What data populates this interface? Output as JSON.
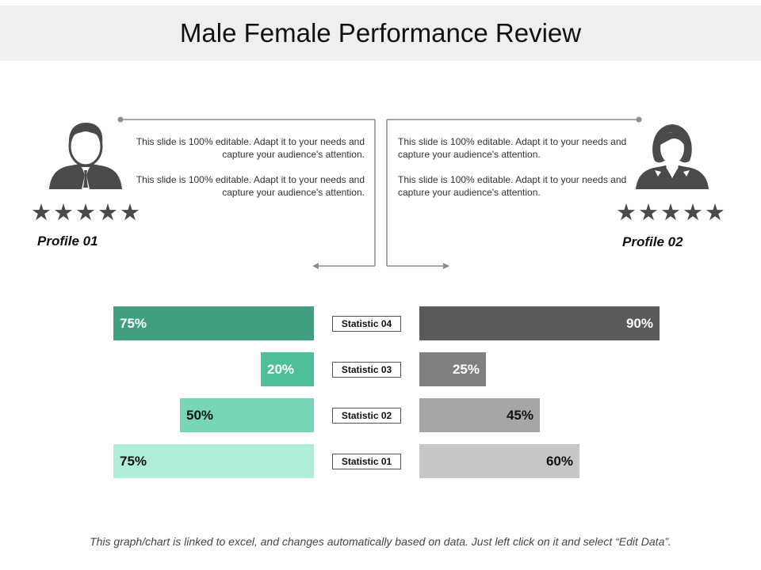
{
  "title": "Male Female Performance Review",
  "profiles": [
    {
      "label": "Profile 01",
      "icon": "male-user-icon",
      "rating": 5,
      "stars": "★★★★★"
    },
    {
      "label": "Profile 02",
      "icon": "female-user-icon",
      "rating": 5,
      "stars": "★★★★★"
    }
  ],
  "descriptions": {
    "left": [
      "This slide is 100% editable. Adapt it to your needs and capture your audience's attention.",
      "This slide is 100% editable. Adapt it to your needs and capture your audience's attention."
    ],
    "right": [
      "This slide is 100% editable. Adapt it to your needs and capture your audience's attention.",
      "This slide is 100% editable. Adapt it to your needs and capture your audience's attention."
    ]
  },
  "chart_data": {
    "type": "bar",
    "orientation": "horizontal-butterfly",
    "unit": "%",
    "xlim": [
      0,
      100
    ],
    "categories": [
      "Statistic 04",
      "Statistic 03",
      "Statistic 02",
      "Statistic 01"
    ],
    "series": [
      {
        "name": "Profile 01",
        "values": [
          75,
          20,
          50,
          75
        ],
        "labels": [
          "75%",
          "20%",
          "50%",
          "75%"
        ],
        "colors": [
          "#3f9f7f",
          "#4fbf99",
          "#76d6b6",
          "#aeeedb"
        ]
      },
      {
        "name": "Profile 02",
        "values": [
          90,
          25,
          45,
          60
        ],
        "labels": [
          "90%",
          "25%",
          "45%",
          "60%"
        ],
        "colors": [
          "#5a5a5a",
          "#808080",
          "#a6a6a6",
          "#c6c6c6"
        ]
      }
    ]
  },
  "colors": {
    "title_band": "#efefef",
    "stars": "#4b4b4b",
    "connector": "#8c8c8c"
  },
  "footer": "This graph/chart is linked to excel, and changes automatically based on data.  Just left click on it and select “Edit Data”."
}
